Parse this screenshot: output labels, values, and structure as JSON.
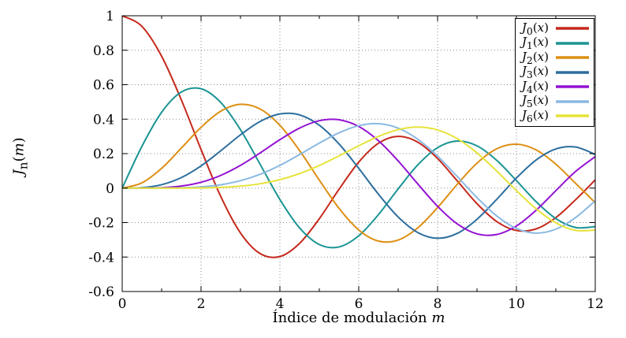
{
  "figure": {
    "background": "#ffffff",
    "border_color": "#000000",
    "grid_color": "#8a8a8a"
  },
  "chart_data": {
    "type": "line",
    "title": "",
    "xlabel": "Índice de modulación",
    "xlabel_var": "m",
    "ylabel": "J_n(m)",
    "xlim": [
      0,
      12
    ],
    "ylim": [
      -0.6,
      1
    ],
    "xticks": [
      0,
      2,
      4,
      6,
      8,
      10,
      12
    ],
    "xminors": [
      1,
      3,
      5,
      7,
      9,
      11
    ],
    "yticks": [
      -0.6,
      -0.4,
      -0.2,
      0,
      0.2,
      0.4,
      0.6,
      0.8,
      1
    ],
    "grid": "dotted",
    "legend_position": "top-right",
    "x": [
      0,
      0.5,
      1,
      1.5,
      2,
      2.5,
      3,
      3.5,
      4,
      4.5,
      5,
      5.5,
      6,
      6.5,
      7,
      7.5,
      8,
      8.5,
      9,
      9.5,
      10,
      10.5,
      11,
      11.5,
      12
    ],
    "series": [
      {
        "name": "J_0(x)",
        "color": "#c5291c",
        "values": [
          1,
          0.9385,
          0.7652,
          0.5118,
          0.2239,
          -0.0484,
          -0.2601,
          -0.3801,
          -0.3971,
          -0.3205,
          -0.1776,
          -0.0068,
          0.1506,
          0.2601,
          0.3001,
          0.2663,
          0.1717,
          0.0419,
          -0.0903,
          -0.1939,
          -0.2459,
          -0.2366,
          -0.1712,
          -0.0677,
          0.0477
        ]
      },
      {
        "name": "J_1(x)",
        "color": "#1b9494",
        "values": [
          0,
          0.2423,
          0.4401,
          0.5579,
          0.5767,
          0.4971,
          0.3391,
          0.1374,
          -0.066,
          -0.2311,
          -0.3276,
          -0.3414,
          -0.2767,
          -0.1538,
          -0.0047,
          0.1352,
          0.2346,
          0.2731,
          0.2453,
          0.1613,
          0.0435,
          -0.0789,
          -0.1768,
          -0.2284,
          -0.2234
        ]
      },
      {
        "name": "J_2(x)",
        "color": "#dd8f13",
        "values": [
          0,
          0.0306,
          0.1149,
          0.2321,
          0.3528,
          0.4461,
          0.4861,
          0.4586,
          0.3641,
          0.2178,
          0.0466,
          -0.1173,
          -0.2429,
          -0.3074,
          -0.3014,
          -0.2303,
          -0.113,
          0.0223,
          0.1448,
          0.2279,
          0.2546,
          0.2216,
          0.139,
          0.0279,
          -0.0849
        ]
      },
      {
        "name": "J_3(x)",
        "color": "#2c6e9e",
        "values": [
          0,
          0.0026,
          0.0196,
          0.061,
          0.1289,
          0.2166,
          0.3091,
          0.3868,
          0.4302,
          0.4247,
          0.3648,
          0.2561,
          0.1148,
          -0.0353,
          -0.1676,
          -0.2581,
          -0.2911,
          -0.2626,
          -0.1809,
          -0.0653,
          0.0584,
          0.1633,
          0.2273,
          0.2381,
          0.1951
        ]
      },
      {
        "name": "J_4(x)",
        "color": "#9413d2",
        "values": [
          0,
          0.0002,
          0.0025,
          0.0118,
          0.034,
          0.0738,
          0.132,
          0.2044,
          0.2811,
          0.3484,
          0.3912,
          0.3967,
          0.3576,
          0.2748,
          0.1578,
          0.0238,
          -0.1054,
          -0.2077,
          -0.2655,
          -0.2691,
          -0.2196,
          -0.1283,
          -0.015,
          0.0963,
          0.1825
        ]
      },
      {
        "name": "J_5(x)",
        "color": "#8ab9e2",
        "values": [
          0,
          0.0001,
          0.0002,
          0.0018,
          0.007,
          0.0195,
          0.043,
          0.0804,
          0.1321,
          0.1947,
          0.2611,
          0.3209,
          0.3621,
          0.3736,
          0.3479,
          0.2833,
          0.1858,
          0.0671,
          -0.055,
          -0.1613,
          -0.2341,
          -0.2611,
          -0.2383,
          -0.1711,
          -0.0735
        ]
      },
      {
        "name": "J_6(x)",
        "color": "#e6e33a",
        "values": [
          0,
          0.0001,
          0.0001,
          0.0002,
          0.0012,
          0.0042,
          0.0114,
          0.0254,
          0.0491,
          0.0843,
          0.131,
          0.1868,
          0.2458,
          0.2999,
          0.3392,
          0.3541,
          0.3376,
          0.2867,
          0.2043,
          0.0993,
          -0.0145,
          -0.1203,
          -0.2016,
          -0.2451,
          -0.2437
        ]
      }
    ]
  }
}
